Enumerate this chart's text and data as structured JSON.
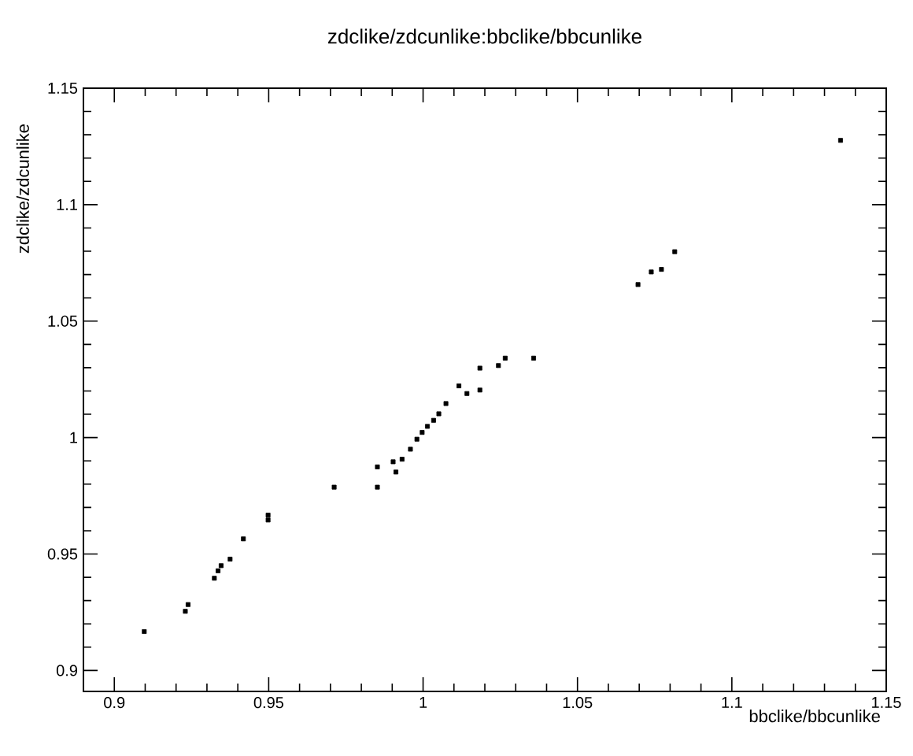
{
  "chart_data": {
    "type": "scatter",
    "title": "zdclike/zdcunlike:bbclike/bbcunlike",
    "xlabel": "bbclike/bbcunlike",
    "ylabel": "zdclike/zdcunlike",
    "color": "#000000",
    "marker": "square",
    "xlim": [
      0.89,
      1.15
    ],
    "ylim": [
      0.891,
      1.15
    ],
    "xticks": [
      0.9,
      0.95,
      1,
      1.05,
      1.1,
      1.15
    ],
    "yticks": [
      0.9,
      0.95,
      1,
      1.05,
      1.1,
      1.15
    ],
    "x": [
      0.9097,
      0.923,
      0.9239,
      0.9324,
      0.9336,
      0.9346,
      0.9375,
      0.9418,
      0.9498,
      0.9498,
      0.9712,
      0.9852,
      0.9852,
      0.9903,
      0.9912,
      0.9932,
      0.9959,
      0.998,
      0.9997,
      1.0014,
      1.0034,
      1.0051,
      1.0074,
      1.0116,
      1.0142,
      1.0184,
      1.0184,
      1.0244,
      1.0266,
      1.0358,
      1.0696,
      1.0739,
      1.0772,
      1.0815,
      1.1352
    ],
    "values": [
      0.9167,
      0.9254,
      0.9283,
      0.9396,
      0.9428,
      0.945,
      0.9478,
      0.9565,
      0.9667,
      0.9646,
      0.9787,
      0.9787,
      0.9874,
      0.9896,
      0.9852,
      0.9907,
      0.995,
      0.9993,
      1.0022,
      1.0048,
      1.0074,
      1.0102,
      1.0146,
      1.0222,
      1.0189,
      1.0204,
      1.0298,
      1.0309,
      1.0341,
      1.0341,
      1.0657,
      1.0711,
      1.0722,
      1.0798,
      1.1276
    ]
  }
}
